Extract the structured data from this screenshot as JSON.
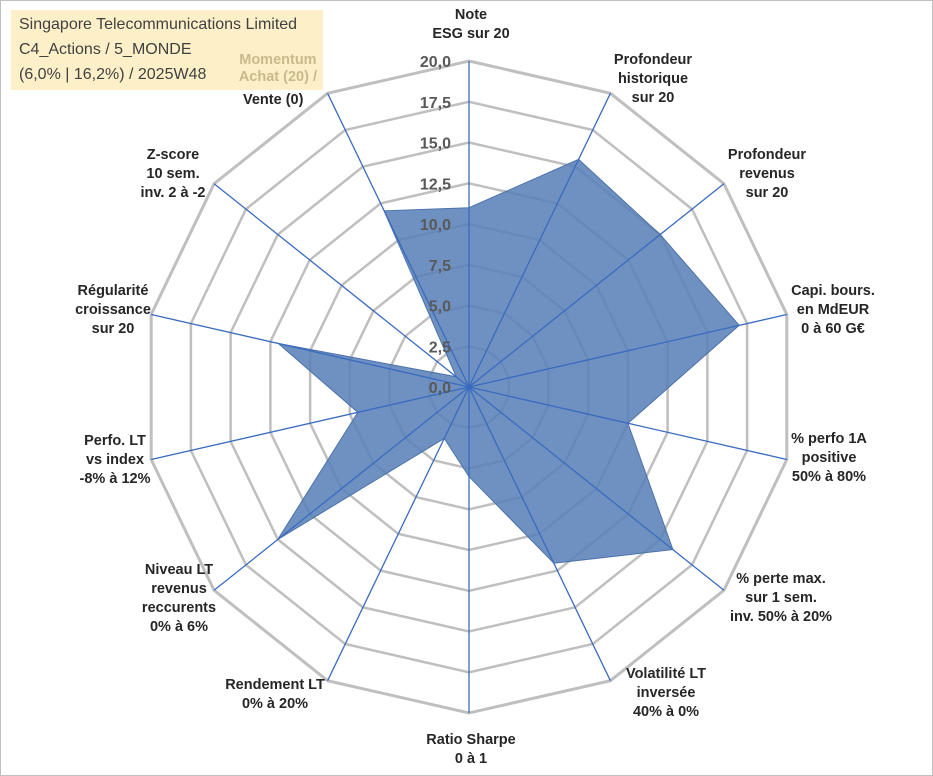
{
  "header": {
    "line1": "Singapore Telecommunications Limited",
    "line2": "C4_Actions / 5_MONDE",
    "line3": "(6,0% | 16,2%) / 2025W48",
    "momentum_line1": "Momentum",
    "momentum_line2": "Achat (20) /",
    "momentum_line3": "Vente (0)"
  },
  "colors": {
    "fill": "#5b82b8",
    "stroke": "#4a72aa",
    "axis": "#3a6bbf",
    "grid": "#bfbfbf",
    "title_bg": "#fdf0c9",
    "momentum_text": "#c9b98c"
  },
  "chart_data": {
    "type": "radar",
    "title": "",
    "axes": [
      {
        "label": [
          "Note",
          "ESG sur 20"
        ]
      },
      {
        "label": [
          "Profondeur",
          "historique",
          "sur 20"
        ]
      },
      {
        "label": [
          "Profondeur",
          "revenus",
          "sur 20"
        ]
      },
      {
        "label": [
          "Capi. bours.",
          "en MdEUR",
          "0 à 60 G€"
        ]
      },
      {
        "label": [
          "% perfo 1A",
          "positive",
          "50% à 80%"
        ]
      },
      {
        "label": [
          "% perte max.",
          "sur 1 sem.",
          "inv. 50% à 20%"
        ]
      },
      {
        "label": [
          "Volatilité LT",
          "inversée",
          "40% à 0%"
        ]
      },
      {
        "label": [
          "Ratio Sharpe",
          "0 à 1"
        ]
      },
      {
        "label": [
          "Rendement LT",
          "0% à 20%"
        ]
      },
      {
        "label": [
          "Niveau LT",
          "revenus",
          "reccurents",
          "0% à 6%"
        ]
      },
      {
        "label": [
          "Perfo. LT",
          "vs index",
          "-8% à 12%"
        ]
      },
      {
        "label": [
          "Régularité",
          "croissance",
          "sur 20"
        ]
      },
      {
        "label": [
          "Z-score",
          "10 sem.",
          "inv. 2 à -2"
        ]
      },
      {
        "label": []
      }
    ],
    "ticks": [
      "0,0",
      "2,5",
      "5,0",
      "7,5",
      "10,0",
      "12,5",
      "15,0",
      "17,5",
      "20,0"
    ],
    "rmax": 20,
    "values": [
      11.0,
      15.5,
      15.0,
      17.0,
      10.0,
      16.0,
      12.0,
      5.5,
      3.5,
      15.0,
      7.0,
      12.0,
      1.0,
      12.0
    ],
    "grid": true,
    "legend": "none"
  }
}
